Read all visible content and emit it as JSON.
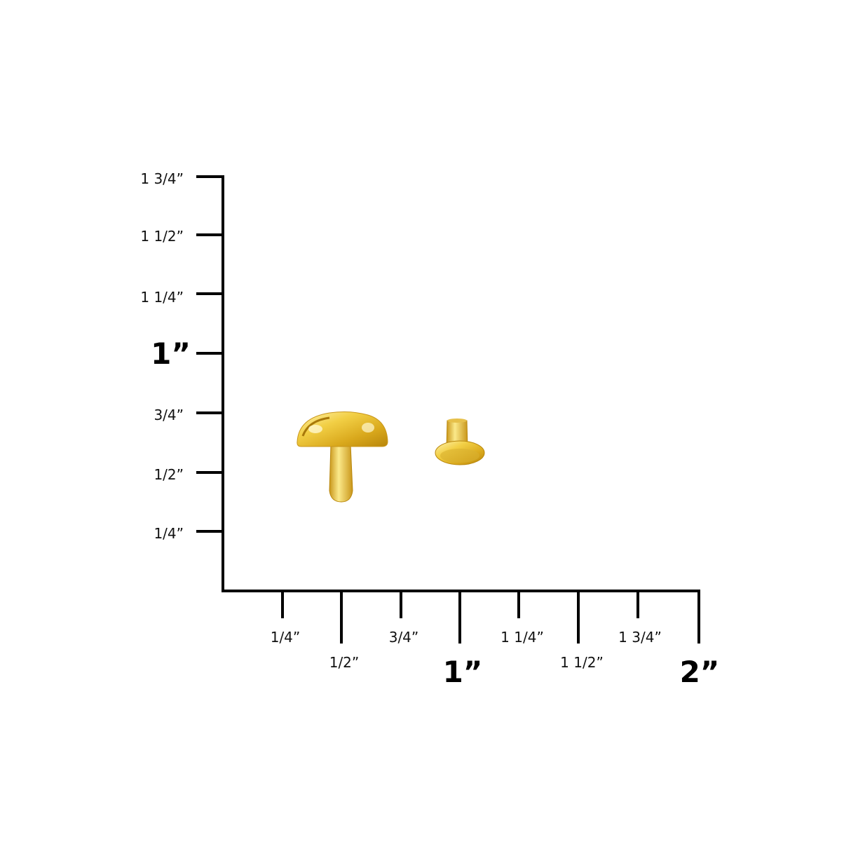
{
  "ruler": {
    "y_labels": [
      "1 3/4”",
      "1 1/2”",
      "1 1/4”",
      "1”",
      "3/4”",
      "1/2”",
      "1/4”"
    ],
    "x_labels": [
      "1/4”",
      "1/2”",
      "3/4”",
      "1”",
      "1 1/4”",
      "1 1/2”",
      "1 3/4”",
      "2”"
    ],
    "line_color": "#000000"
  },
  "product": {
    "items": [
      "rivet-cap",
      "rivet-post"
    ],
    "color": "#e8c23a"
  }
}
